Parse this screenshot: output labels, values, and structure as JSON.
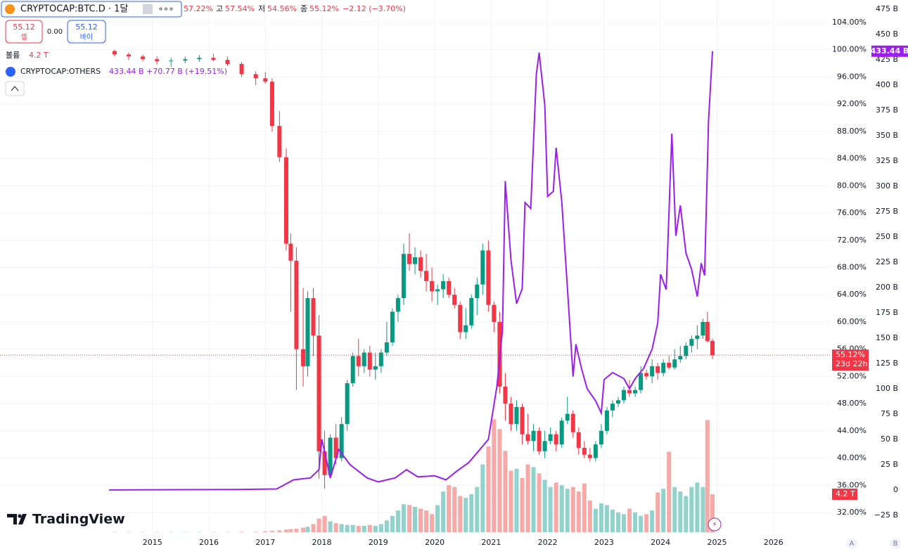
{
  "chart_data": {
    "type": "candlestick",
    "legend": {
      "symbol": "CRYPTOCAP:BTC.D · 1달",
      "open": "57.22%",
      "high_label": "고",
      "high": "57.54%",
      "low_label": "저",
      "low": "54.56%",
      "close_label": "종",
      "close": "55.12%",
      "change": "−2.12 (−3.70%)"
    },
    "trade": {
      "sell_price": "55.12",
      "sell_label": "셀",
      "spread": "0.00",
      "buy_price": "55.12",
      "buy_label": "바이"
    },
    "volume_legend": {
      "label": "볼륨",
      "value": "4.2 T"
    },
    "tags": {
      "price": "55.12%",
      "countdown": "23d 22h",
      "others": "433.44 B",
      "volume": "4.2 T"
    },
    "brand": "TradingView",
    "buttons": [
      "A",
      "B"
    ],
    "up_color": "#089981",
    "down_color": "#f23645",
    "volume_up_color": "#92d2cc",
    "volume_down_color": "#f7a9a7",
    "xlim": [
      2012.3,
      2027.0
    ],
    "xticks": [
      2015,
      2016,
      2017,
      2018,
      2019,
      2020,
      2021,
      2022,
      2023,
      2024,
      2025,
      2026
    ],
    "ylim": [
      28.8,
      107.3
    ],
    "yticks": [
      {
        "value": 32,
        "label": "32.00%"
      },
      {
        "value": 36,
        "label": "36.00%"
      },
      {
        "value": 40,
        "label": "40.00%"
      },
      {
        "value": 44,
        "label": "44.00%"
      },
      {
        "value": 48,
        "label": "48.00%"
      },
      {
        "value": 52,
        "label": "52.00%"
      },
      {
        "value": 56,
        "label": "56.00%"
      },
      {
        "value": 60,
        "label": "60.00%"
      },
      {
        "value": 64,
        "label": "64.00%"
      },
      {
        "value": 68,
        "label": "68.00%"
      },
      {
        "value": 72,
        "label": "72.00%"
      },
      {
        "value": 76,
        "label": "76.00%"
      },
      {
        "value": 80,
        "label": "80.00%"
      },
      {
        "value": 84,
        "label": "84.00%"
      },
      {
        "value": 88,
        "label": "88.00%"
      },
      {
        "value": 92,
        "label": "92.00%"
      },
      {
        "value": 96,
        "label": "96.00%"
      },
      {
        "value": 100,
        "label": "100.00%"
      },
      {
        "value": 104,
        "label": "104.00%"
      }
    ],
    "y2lim": [
      -43.8,
      484
    ],
    "y2ticks": [
      {
        "value": -25,
        "label": "−25 B"
      },
      0,
      {
        "value": 25,
        "label": "25 B"
      },
      {
        "value": 50,
        "label": "50 B"
      },
      {
        "value": 75,
        "label": "75 B"
      },
      {
        "value": 100,
        "label": "100 B"
      },
      {
        "value": 125,
        "label": "125 B"
      },
      {
        "value": 150,
        "label": "150 B"
      },
      {
        "value": 175,
        "label": "175 B"
      },
      {
        "value": 200,
        "label": "200 B"
      },
      {
        "value": 225,
        "label": "225 B"
      },
      {
        "value": 250,
        "label": "250 B"
      },
      {
        "value": 275,
        "label": "275 B"
      },
      {
        "value": 300,
        "label": "300 B"
      },
      {
        "value": 325,
        "label": "325 B"
      },
      {
        "value": 350,
        "label": "350 B"
      },
      {
        "value": 375,
        "label": "375 B"
      },
      {
        "value": 400,
        "label": "400 B"
      },
      {
        "value": 425,
        "label": "425 B"
      },
      {
        "value": 450,
        "label": "450 B"
      },
      {
        "value": 475,
        "label": "475 B"
      }
    ],
    "grid": true,
    "candles": [
      {
        "x": 2014.33,
        "o": 99.8,
        "h": 100,
        "l": 99,
        "c": 99.3,
        "v": 0.03
      },
      {
        "x": 2014.58,
        "o": 99.3,
        "h": 99.6,
        "l": 98.5,
        "c": 99.0,
        "v": 0.03
      },
      {
        "x": 2014.83,
        "o": 99.0,
        "h": 99.3,
        "l": 98.3,
        "c": 98.6,
        "v": 0.03
      },
      {
        "x": 2015.08,
        "o": 98.6,
        "h": 99.0,
        "l": 97.8,
        "c": 98.3,
        "v": 0.03
      },
      {
        "x": 2015.33,
        "o": 98.3,
        "h": 98.8,
        "l": 97.5,
        "c": 98.4,
        "v": 0.03
      },
      {
        "x": 2015.58,
        "o": 98.4,
        "h": 99.0,
        "l": 98.0,
        "c": 98.6,
        "v": 0.03
      },
      {
        "x": 2015.83,
        "o": 98.6,
        "h": 99.2,
        "l": 98.2,
        "c": 98.8,
        "v": 0.03
      },
      {
        "x": 2016.08,
        "o": 98.8,
        "h": 99.4,
        "l": 98.3,
        "c": 98.5,
        "v": 0.03
      },
      {
        "x": 2016.33,
        "o": 98.5,
        "h": 99.0,
        "l": 97.6,
        "c": 97.9,
        "v": 0.03
      },
      {
        "x": 2016.58,
        "o": 97.9,
        "h": 98.2,
        "l": 96.0,
        "c": 96.4,
        "v": 0.05
      },
      {
        "x": 2016.83,
        "o": 96.4,
        "h": 96.8,
        "l": 94.8,
        "c": 95.8,
        "v": 0.05
      },
      {
        "x": 2017.0,
        "o": 95.8,
        "h": 96.7,
        "l": 95.0,
        "c": 95.3,
        "v": 0.1
      },
      {
        "x": 2017.12,
        "o": 95.3,
        "h": 95.8,
        "l": 88.0,
        "c": 88.8,
        "v": 0.15
      },
      {
        "x": 2017.25,
        "o": 88.8,
        "h": 91.0,
        "l": 83.5,
        "c": 84.2,
        "v": 0.2
      },
      {
        "x": 2017.37,
        "o": 84.2,
        "h": 85.5,
        "l": 70.5,
        "c": 71.5,
        "v": 0.3
      },
      {
        "x": 2017.45,
        "o": 71.5,
        "h": 73.0,
        "l": 61.5,
        "c": 69.0,
        "v": 0.35
      },
      {
        "x": 2017.55,
        "o": 69.0,
        "h": 71.0,
        "l": 50.0,
        "c": 56.0,
        "v": 0.4
      },
      {
        "x": 2017.67,
        "o": 56.0,
        "h": 65.0,
        "l": 50.5,
        "c": 53.5,
        "v": 0.5
      },
      {
        "x": 2017.75,
        "o": 53.5,
        "h": 64.5,
        "l": 52.0,
        "c": 63.5,
        "v": 0.6
      },
      {
        "x": 2017.85,
        "o": 63.5,
        "h": 65.0,
        "l": 55.0,
        "c": 58.0,
        "v": 0.9
      },
      {
        "x": 2017.95,
        "o": 58.0,
        "h": 61.0,
        "l": 37.0,
        "c": 41.0,
        "v": 1.5
      },
      {
        "x": 2018.05,
        "o": 41.0,
        "h": 44.0,
        "l": 35.5,
        "c": 37.5,
        "v": 1.8
      },
      {
        "x": 2018.15,
        "o": 37.5,
        "h": 43.5,
        "l": 37.0,
        "c": 43.0,
        "v": 1.2
      },
      {
        "x": 2018.25,
        "o": 43.0,
        "h": 45.0,
        "l": 39.0,
        "c": 40.0,
        "v": 1.0
      },
      {
        "x": 2018.35,
        "o": 40.0,
        "h": 46.0,
        "l": 39.5,
        "c": 45.0,
        "v": 0.9
      },
      {
        "x": 2018.45,
        "o": 45.0,
        "h": 51.5,
        "l": 44.0,
        "c": 51.0,
        "v": 0.8
      },
      {
        "x": 2018.55,
        "o": 51.0,
        "h": 55.5,
        "l": 50.5,
        "c": 55.0,
        "v": 0.8
      },
      {
        "x": 2018.65,
        "o": 55.0,
        "h": 57.5,
        "l": 52.0,
        "c": 53.5,
        "v": 0.7
      },
      {
        "x": 2018.75,
        "o": 53.5,
        "h": 56.0,
        "l": 52.5,
        "c": 55.5,
        "v": 0.7
      },
      {
        "x": 2018.85,
        "o": 55.5,
        "h": 56.5,
        "l": 52.0,
        "c": 53.0,
        "v": 0.8
      },
      {
        "x": 2018.95,
        "o": 53.0,
        "h": 55.5,
        "l": 51.5,
        "c": 53.5,
        "v": 0.7
      },
      {
        "x": 2019.05,
        "o": 53.5,
        "h": 56.0,
        "l": 52.5,
        "c": 55.5,
        "v": 0.9
      },
      {
        "x": 2019.15,
        "o": 55.5,
        "h": 60.0,
        "l": 55.0,
        "c": 57.0,
        "v": 1.3
      },
      {
        "x": 2019.25,
        "o": 57.0,
        "h": 62.0,
        "l": 56.5,
        "c": 61.5,
        "v": 1.8
      },
      {
        "x": 2019.35,
        "o": 61.5,
        "h": 64.0,
        "l": 60.0,
        "c": 63.5,
        "v": 2.4
      },
      {
        "x": 2019.45,
        "o": 63.5,
        "h": 71.5,
        "l": 62.5,
        "c": 70.0,
        "v": 3.1
      },
      {
        "x": 2019.55,
        "o": 70.0,
        "h": 73.0,
        "l": 67.5,
        "c": 68.5,
        "v": 3.0
      },
      {
        "x": 2019.65,
        "o": 68.5,
        "h": 71.0,
        "l": 67.0,
        "c": 69.5,
        "v": 2.8
      },
      {
        "x": 2019.75,
        "o": 69.5,
        "h": 70.5,
        "l": 66.5,
        "c": 67.5,
        "v": 2.6
      },
      {
        "x": 2019.85,
        "o": 67.5,
        "h": 70.0,
        "l": 64.5,
        "c": 66.0,
        "v": 2.4
      },
      {
        "x": 2019.95,
        "o": 66.0,
        "h": 68.0,
        "l": 63.0,
        "c": 64.5,
        "v": 2.0
      },
      {
        "x": 2020.05,
        "o": 64.5,
        "h": 65.5,
        "l": 62.5,
        "c": 64.8,
        "v": 3.0
      },
      {
        "x": 2020.15,
        "o": 64.8,
        "h": 67.0,
        "l": 63.5,
        "c": 66.0,
        "v": 4.5
      },
      {
        "x": 2020.25,
        "o": 66.0,
        "h": 66.5,
        "l": 63.5,
        "c": 64.0,
        "v": 5.2
      },
      {
        "x": 2020.35,
        "o": 64.0,
        "h": 65.0,
        "l": 62.0,
        "c": 62.5,
        "v": 5.0
      },
      {
        "x": 2020.45,
        "o": 62.5,
        "h": 63.0,
        "l": 57.5,
        "c": 58.5,
        "v": 4.0
      },
      {
        "x": 2020.55,
        "o": 58.5,
        "h": 62.0,
        "l": 57.5,
        "c": 59.5,
        "v": 3.8
      },
      {
        "x": 2020.65,
        "o": 59.5,
        "h": 64.0,
        "l": 59.0,
        "c": 63.5,
        "v": 4.2
      },
      {
        "x": 2020.75,
        "o": 63.5,
        "h": 66.5,
        "l": 61.0,
        "c": 65.5,
        "v": 5.0
      },
      {
        "x": 2020.85,
        "o": 65.5,
        "h": 71.5,
        "l": 64.0,
        "c": 70.5,
        "v": 7.5
      },
      {
        "x": 2020.95,
        "o": 70.5,
        "h": 72.0,
        "l": 61.5,
        "c": 62.5,
        "v": 9.5
      },
      {
        "x": 2021.05,
        "o": 62.5,
        "h": 63.0,
        "l": 58.5,
        "c": 60.0,
        "v": 12.5
      },
      {
        "x": 2021.15,
        "o": 60.0,
        "h": 61.5,
        "l": 49.5,
        "c": 50.5,
        "v": 11.4
      },
      {
        "x": 2021.25,
        "o": 50.5,
        "h": 52.5,
        "l": 45.5,
        "c": 48.0,
        "v": 9.0
      },
      {
        "x": 2021.35,
        "o": 48.0,
        "h": 49.0,
        "l": 44.0,
        "c": 45.0,
        "v": 6.8
      },
      {
        "x": 2021.45,
        "o": 45.0,
        "h": 48.5,
        "l": 44.0,
        "c": 47.5,
        "v": 7.0
      },
      {
        "x": 2021.55,
        "o": 47.5,
        "h": 48.0,
        "l": 42.0,
        "c": 43.5,
        "v": 6.0
      },
      {
        "x": 2021.65,
        "o": 43.5,
        "h": 46.5,
        "l": 42.0,
        "c": 42.5,
        "v": 7.5
      },
      {
        "x": 2021.75,
        "o": 42.5,
        "h": 45.0,
        "l": 41.0,
        "c": 44.0,
        "v": 7.2
      },
      {
        "x": 2021.85,
        "o": 44.0,
        "h": 44.5,
        "l": 40.5,
        "c": 41.0,
        "v": 6.5
      },
      {
        "x": 2021.95,
        "o": 41.0,
        "h": 44.0,
        "l": 40.0,
        "c": 42.5,
        "v": 5.8
      },
      {
        "x": 2022.05,
        "o": 42.5,
        "h": 44.5,
        "l": 42.0,
        "c": 43.5,
        "v": 5.0
      },
      {
        "x": 2022.15,
        "o": 43.5,
        "h": 44.0,
        "l": 41.0,
        "c": 42.0,
        "v": 5.5
      },
      {
        "x": 2022.25,
        "o": 42.0,
        "h": 46.0,
        "l": 41.5,
        "c": 45.5,
        "v": 5.2
      },
      {
        "x": 2022.35,
        "o": 45.5,
        "h": 49.0,
        "l": 45.0,
        "c": 46.5,
        "v": 4.8
      },
      {
        "x": 2022.45,
        "o": 46.5,
        "h": 47.0,
        "l": 43.0,
        "c": 43.8,
        "v": 5.0
      },
      {
        "x": 2022.55,
        "o": 43.8,
        "h": 44.5,
        "l": 40.5,
        "c": 41.5,
        "v": 4.5
      },
      {
        "x": 2022.65,
        "o": 41.5,
        "h": 42.5,
        "l": 40.0,
        "c": 40.5,
        "v": 5.4
      },
      {
        "x": 2022.75,
        "o": 40.5,
        "h": 41.5,
        "l": 39.5,
        "c": 40.0,
        "v": 3.5
      },
      {
        "x": 2022.85,
        "o": 40.0,
        "h": 42.5,
        "l": 39.5,
        "c": 42.0,
        "v": 2.6
      },
      {
        "x": 2022.95,
        "o": 42.0,
        "h": 45.0,
        "l": 41.5,
        "c": 44.0,
        "v": 3.2
      },
      {
        "x": 2023.05,
        "o": 44.0,
        "h": 47.5,
        "l": 43.5,
        "c": 47.0,
        "v": 3.0
      },
      {
        "x": 2023.15,
        "o": 47.0,
        "h": 48.5,
        "l": 46.0,
        "c": 48.0,
        "v": 2.5
      },
      {
        "x": 2023.25,
        "o": 48.0,
        "h": 49.0,
        "l": 47.5,
        "c": 48.5,
        "v": 2.2
      },
      {
        "x": 2023.35,
        "o": 48.5,
        "h": 50.5,
        "l": 48.0,
        "c": 50.0,
        "v": 2.0
      },
      {
        "x": 2023.45,
        "o": 50.0,
        "h": 51.5,
        "l": 49.0,
        "c": 49.5,
        "v": 2.6
      },
      {
        "x": 2023.55,
        "o": 49.5,
        "h": 50.5,
        "l": 49.0,
        "c": 50.0,
        "v": 2.2
      },
      {
        "x": 2023.65,
        "o": 50.0,
        "h": 53.5,
        "l": 49.5,
        "c": 52.5,
        "v": 1.8
      },
      {
        "x": 2023.75,
        "o": 52.5,
        "h": 53.0,
        "l": 51.5,
        "c": 52.0,
        "v": 2.0
      },
      {
        "x": 2023.85,
        "o": 52.0,
        "h": 54.5,
        "l": 51.0,
        "c": 53.5,
        "v": 2.4
      },
      {
        "x": 2023.95,
        "o": 53.5,
        "h": 54.0,
        "l": 51.5,
        "c": 52.5,
        "v": 4.4
      },
      {
        "x": 2024.05,
        "o": 52.5,
        "h": 54.5,
        "l": 52.0,
        "c": 54.0,
        "v": 4.8
      },
      {
        "x": 2024.15,
        "o": 54.0,
        "h": 55.0,
        "l": 53.0,
        "c": 53.3,
        "v": 8.9
      },
      {
        "x": 2024.25,
        "o": 53.3,
        "h": 56.0,
        "l": 53.0,
        "c": 54.5,
        "v": 5.0
      },
      {
        "x": 2024.35,
        "o": 54.5,
        "h": 56.5,
        "l": 54.0,
        "c": 55.0,
        "v": 4.5
      },
      {
        "x": 2024.45,
        "o": 55.0,
        "h": 57.0,
        "l": 54.5,
        "c": 56.5,
        "v": 4.0
      },
      {
        "x": 2024.55,
        "o": 56.5,
        "h": 58.0,
        "l": 55.5,
        "c": 57.5,
        "v": 5.0
      },
      {
        "x": 2024.65,
        "o": 57.5,
        "h": 59.5,
        "l": 56.0,
        "c": 58.0,
        "v": 5.5
      },
      {
        "x": 2024.75,
        "o": 58.0,
        "h": 60.5,
        "l": 57.5,
        "c": 60.0,
        "v": 5.0
      },
      {
        "x": 2024.83,
        "o": 60.0,
        "h": 61.5,
        "l": 57.0,
        "c": 57.2,
        "v": 12.4
      },
      {
        "x": 2024.92,
        "o": 57.22,
        "h": 57.54,
        "l": 54.56,
        "c": 55.12,
        "v": 4.2
      }
    ],
    "series": [
      {
        "name": "CRYPTOCAP:OTHERS",
        "color": "#9c1df0",
        "axis": "y2",
        "value_label": "433.44 B",
        "change_label": "+70.77 B (+19.51%)",
        "x": [
          2014.23,
          2016.5,
          2017.2,
          2017.5,
          2017.8,
          2017.95,
          2018.0,
          2018.15,
          2018.3,
          2018.5,
          2018.8,
          2019.0,
          2019.3,
          2019.5,
          2019.7,
          2020.0,
          2020.2,
          2020.4,
          2020.6,
          2020.8,
          2020.95,
          2021.1,
          2021.2,
          2021.25,
          2021.35,
          2021.45,
          2021.55,
          2021.6,
          2021.7,
          2021.8,
          2021.85,
          2021.95,
          2022.0,
          2022.1,
          2022.15,
          2022.25,
          2022.35,
          2022.45,
          2022.5,
          2022.6,
          2022.7,
          2022.85,
          2022.95,
          2023.0,
          2023.15,
          2023.35,
          2023.45,
          2023.55,
          2023.7,
          2023.85,
          2023.95,
          2024.0,
          2024.1,
          2024.2,
          2024.27,
          2024.35,
          2024.45,
          2024.55,
          2024.65,
          2024.72,
          2024.78,
          2024.85,
          2024.92
        ],
        "values": [
          0,
          0.5,
          1,
          10,
          12,
          20,
          50,
          12,
          40,
          25,
          12,
          8,
          12,
          20,
          13,
          14,
          10,
          19,
          27,
          40,
          50,
          102,
          158,
          305,
          227,
          184,
          199,
          284,
          278,
          411,
          432,
          380,
          290,
          295,
          338,
          285,
          200,
          112,
          144,
          120,
          100,
          88,
          76,
          109,
          116,
          110,
          100,
          110,
          120,
          139,
          165,
          213,
          198,
          352,
          251,
          281,
          234,
          218,
          191,
          224,
          212,
          365,
          433.44
        ]
      }
    ]
  }
}
